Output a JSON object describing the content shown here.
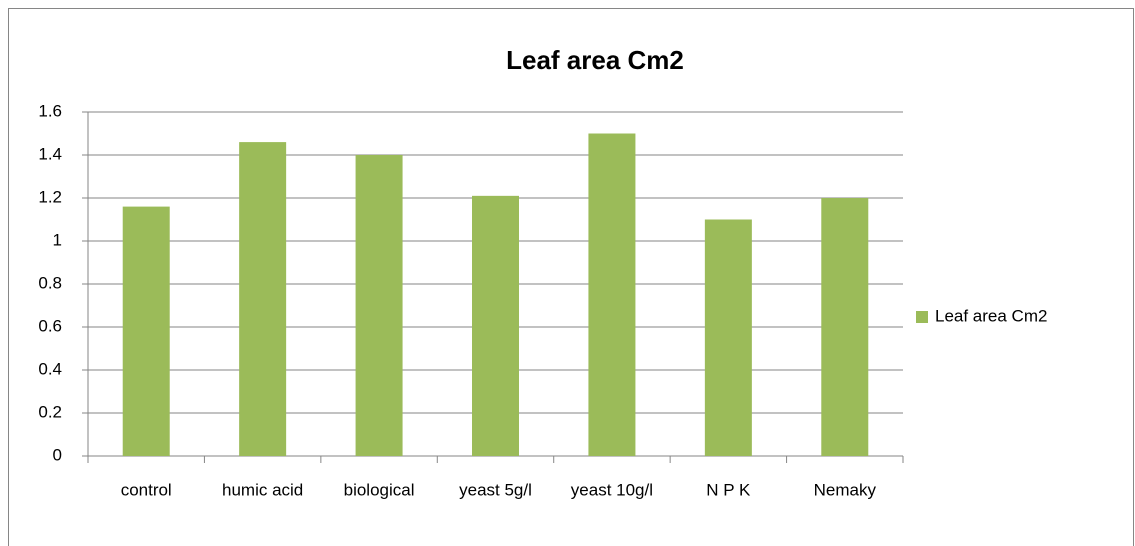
{
  "chart_data": {
    "type": "bar",
    "title": "Leaf area Cm2",
    "categories": [
      "control",
      "humic acid",
      "biological",
      "yeast 5g/l",
      "yeast 10g/l",
      "N P K",
      "Nemaky"
    ],
    "series": [
      {
        "name": "Leaf area Cm2",
        "color": "#9bbb59",
        "values": [
          1.16,
          1.46,
          1.4,
          1.21,
          1.5,
          1.1,
          1.2
        ]
      }
    ],
    "ylim": [
      0,
      1.6
    ],
    "yticks": [
      0,
      0.2,
      0.4,
      0.6,
      0.8,
      1,
      1.2,
      1.4,
      1.6
    ],
    "grid": true,
    "legend": "right"
  }
}
